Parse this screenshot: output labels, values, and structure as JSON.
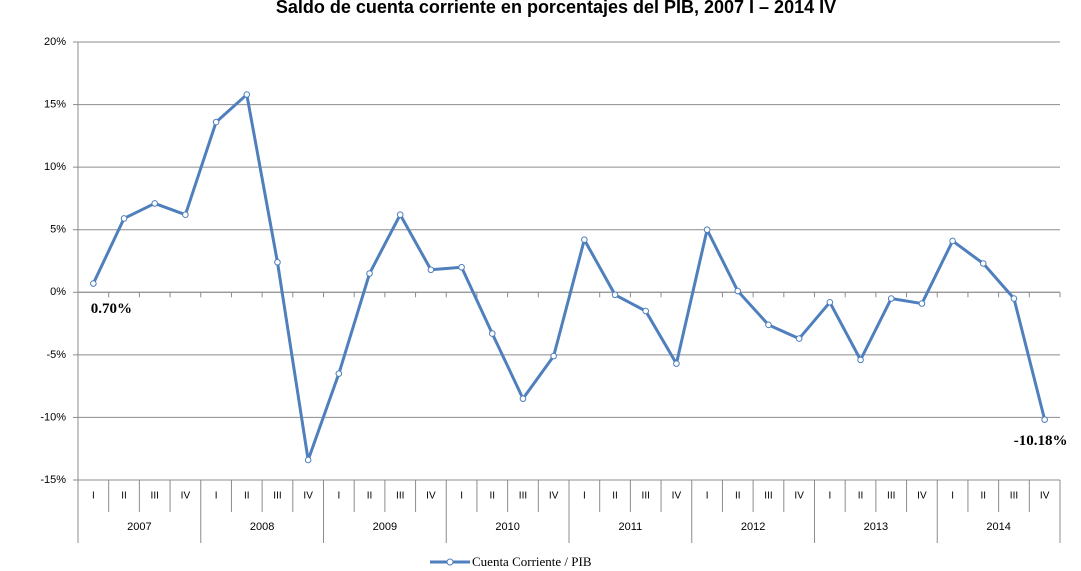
{
  "chart_data": {
    "type": "line",
    "title": "Saldo de cuenta corriente en porcentajes del PIB, 2007 I – 2014 IV",
    "categories": [
      "I",
      "II",
      "III",
      "IV",
      "I",
      "II",
      "III",
      "IV",
      "I",
      "II",
      "III",
      "IV",
      "I",
      "II",
      "III",
      "IV",
      "I",
      "II",
      "III",
      "IV",
      "I",
      "II",
      "III",
      "IV",
      "I",
      "II",
      "III",
      "IV",
      "I",
      "II",
      "III",
      "IV"
    ],
    "groups": [
      "2007",
      "2008",
      "2009",
      "2010",
      "2011",
      "2012",
      "2013",
      "2014"
    ],
    "series": [
      {
        "name": "Cuenta Corriente / PIB",
        "color": "#4f7fbc",
        "values": [
          0.7,
          5.9,
          7.1,
          6.2,
          13.6,
          15.8,
          2.4,
          -13.4,
          -6.5,
          1.5,
          6.2,
          1.8,
          2.0,
          -3.3,
          -8.5,
          -5.1,
          4.2,
          -0.2,
          -1.5,
          -5.7,
          5.0,
          0.1,
          -2.6,
          -3.7,
          -0.8,
          -5.4,
          -0.5,
          -0.9,
          4.1,
          2.3,
          -0.5,
          -10.18
        ],
        "value_labels": [
          "0.70%",
          null,
          null,
          null,
          null,
          null,
          null,
          null,
          null,
          null,
          null,
          null,
          null,
          null,
          null,
          null,
          null,
          null,
          null,
          null,
          null,
          null,
          null,
          null,
          null,
          null,
          null,
          null,
          null,
          null,
          null,
          "-10.18%"
        ]
      }
    ],
    "ylim": [
      -15,
      20
    ],
    "yticks": [
      {
        "value": -15,
        "label": "-15%"
      },
      {
        "value": -10,
        "label": "-10%"
      },
      {
        "value": -5,
        "label": "-5%"
      },
      {
        "value": 0,
        "label": "0%"
      },
      {
        "value": 5,
        "label": "5%"
      },
      {
        "value": 10,
        "label": "10%"
      },
      {
        "value": 15,
        "label": "15%"
      },
      {
        "value": 20,
        "label": "20%"
      }
    ],
    "grid": true,
    "legend": "bottom"
  }
}
